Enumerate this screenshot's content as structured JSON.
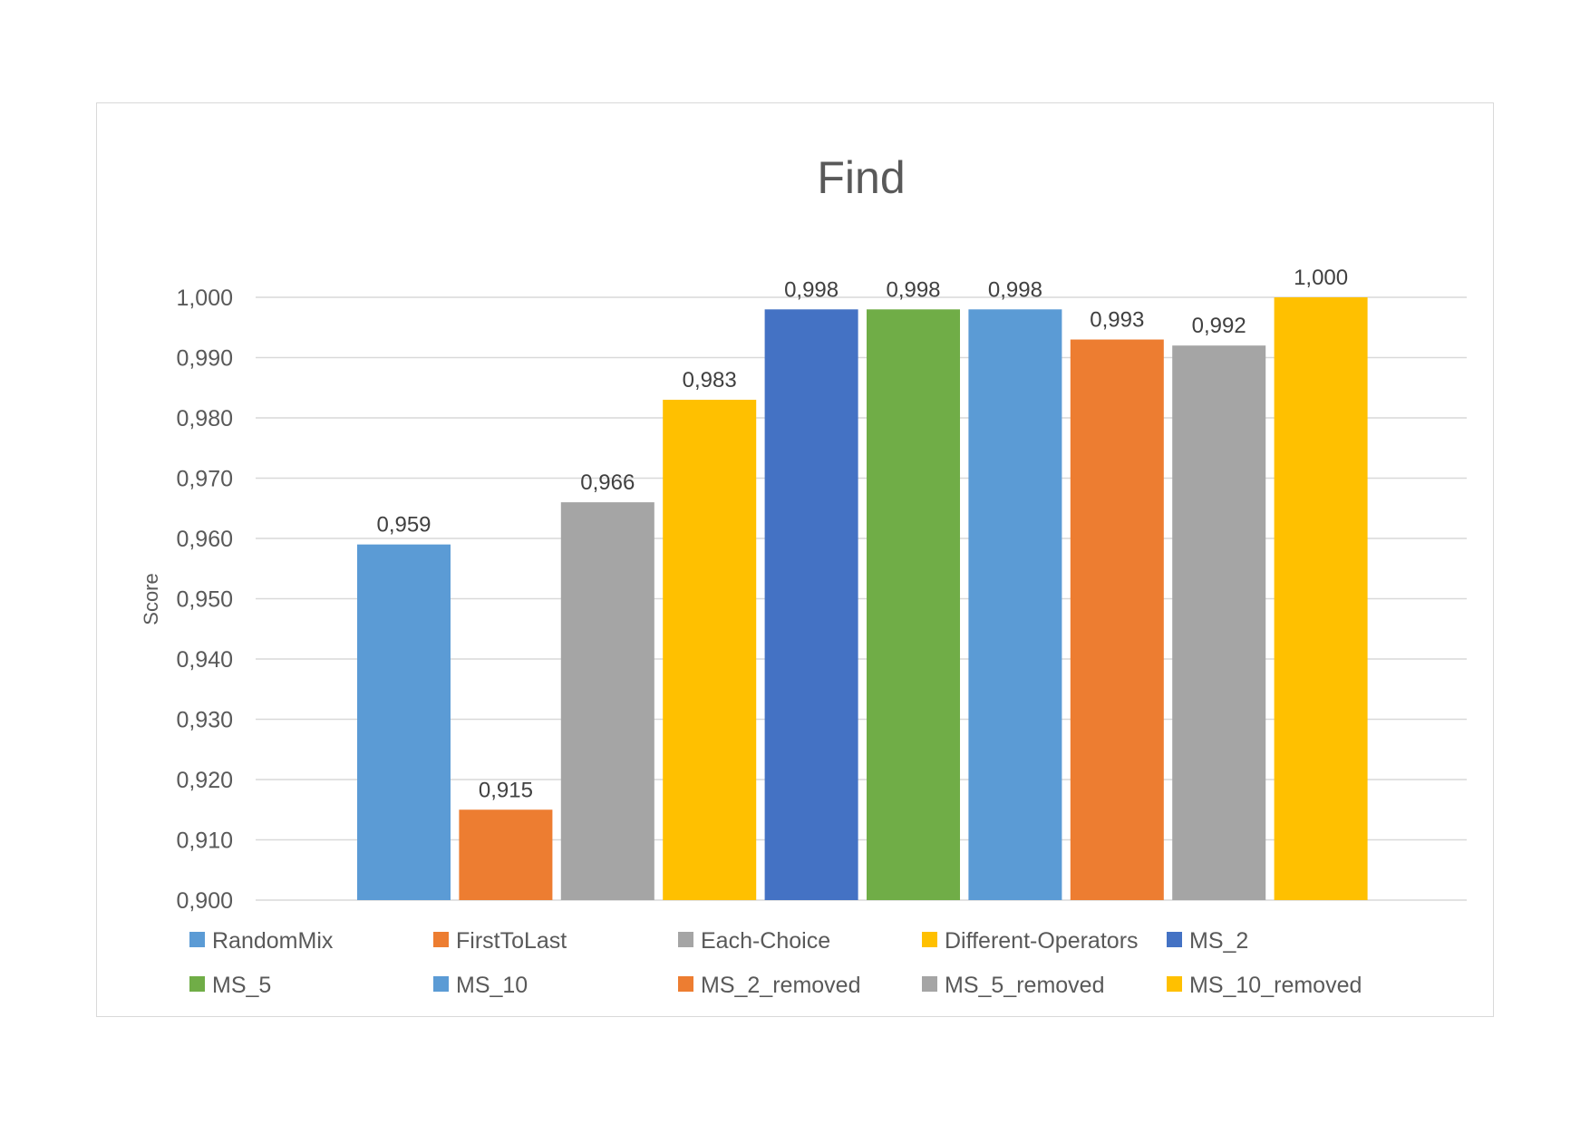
{
  "chart_data": {
    "type": "bar",
    "title": "Find",
    "xlabel": "",
    "ylabel": "Score",
    "ylim": [
      0.9,
      1.0
    ],
    "yticks": [
      0.9,
      0.91,
      0.92,
      0.93,
      0.94,
      0.95,
      0.96,
      0.97,
      0.98,
      0.99,
      1.0
    ],
    "ytick_labels": [
      "0,900",
      "0,910",
      "0,920",
      "0,930",
      "0,940",
      "0,950",
      "0,960",
      "0,970",
      "0,980",
      "0,990",
      "1,000"
    ],
    "grid": true,
    "legend_position": "bottom",
    "series": [
      {
        "name": "RandomMix",
        "value": 0.959,
        "label": "0,959",
        "color": "#5b9bd5"
      },
      {
        "name": "FirstToLast",
        "value": 0.915,
        "label": "0,915",
        "color": "#ed7d31"
      },
      {
        "name": "Each-Choice",
        "value": 0.966,
        "label": "0,966",
        "color": "#a5a5a5"
      },
      {
        "name": "Different-Operators",
        "value": 0.983,
        "label": "0,983",
        "color": "#ffc000"
      },
      {
        "name": "MS_2",
        "value": 0.998,
        "label": "0,998",
        "color": "#4472c4"
      },
      {
        "name": "MS_5",
        "value": 0.998,
        "label": "0,998",
        "color": "#70ad47"
      },
      {
        "name": "MS_10",
        "value": 0.998,
        "label": "0,998",
        "color": "#5b9bd5"
      },
      {
        "name": "MS_2_removed",
        "value": 0.993,
        "label": "0,993",
        "color": "#ed7d31"
      },
      {
        "name": "MS_5_removed",
        "value": 0.992,
        "label": "0,992",
        "color": "#a5a5a5"
      },
      {
        "name": "MS_10_removed",
        "value": 1.0,
        "label": "1,000",
        "color": "#ffc000"
      }
    ]
  }
}
